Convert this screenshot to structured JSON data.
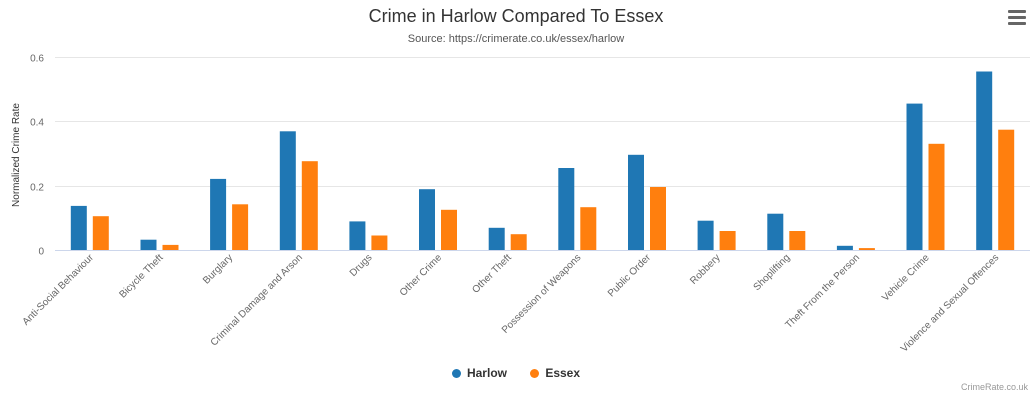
{
  "chart_data": {
    "type": "bar",
    "title": "Crime in Harlow Compared To Essex",
    "subtitle": "Source: https://crimerate.co.uk/essex/harlow",
    "xlabel": "",
    "ylabel": "Normalized Crime Rate",
    "ylim": [
      0,
      0.6
    ],
    "yticks": [
      "0",
      "0.2",
      "0.4",
      "0.6"
    ],
    "grid": true,
    "legend": "bottom-center",
    "categories": [
      "Anti-Social Behaviour",
      "Bicycle Theft",
      "Burglary",
      "Criminal Damage and Arson",
      "Drugs",
      "Other Crime",
      "Other Theft",
      "Possession of Weapons",
      "Public Order",
      "Robbery",
      "Shoplifting",
      "Theft From the Person",
      "Vehicle Crime",
      "Violence and Sexual Offences"
    ],
    "series": [
      {
        "name": "Harlow",
        "color": "#1f77b4",
        "values": [
          0.137,
          0.032,
          0.221,
          0.369,
          0.089,
          0.189,
          0.069,
          0.255,
          0.296,
          0.091,
          0.113,
          0.013,
          0.455,
          0.555
        ]
      },
      {
        "name": "Essex",
        "color": "#ff7f0e",
        "values": [
          0.105,
          0.016,
          0.142,
          0.276,
          0.045,
          0.125,
          0.049,
          0.133,
          0.196,
          0.059,
          0.059,
          0.006,
          0.33,
          0.374
        ]
      }
    ]
  },
  "menu": {
    "icon": "hamburger-menu-icon"
  },
  "credits": "CrimeRate.co.uk"
}
